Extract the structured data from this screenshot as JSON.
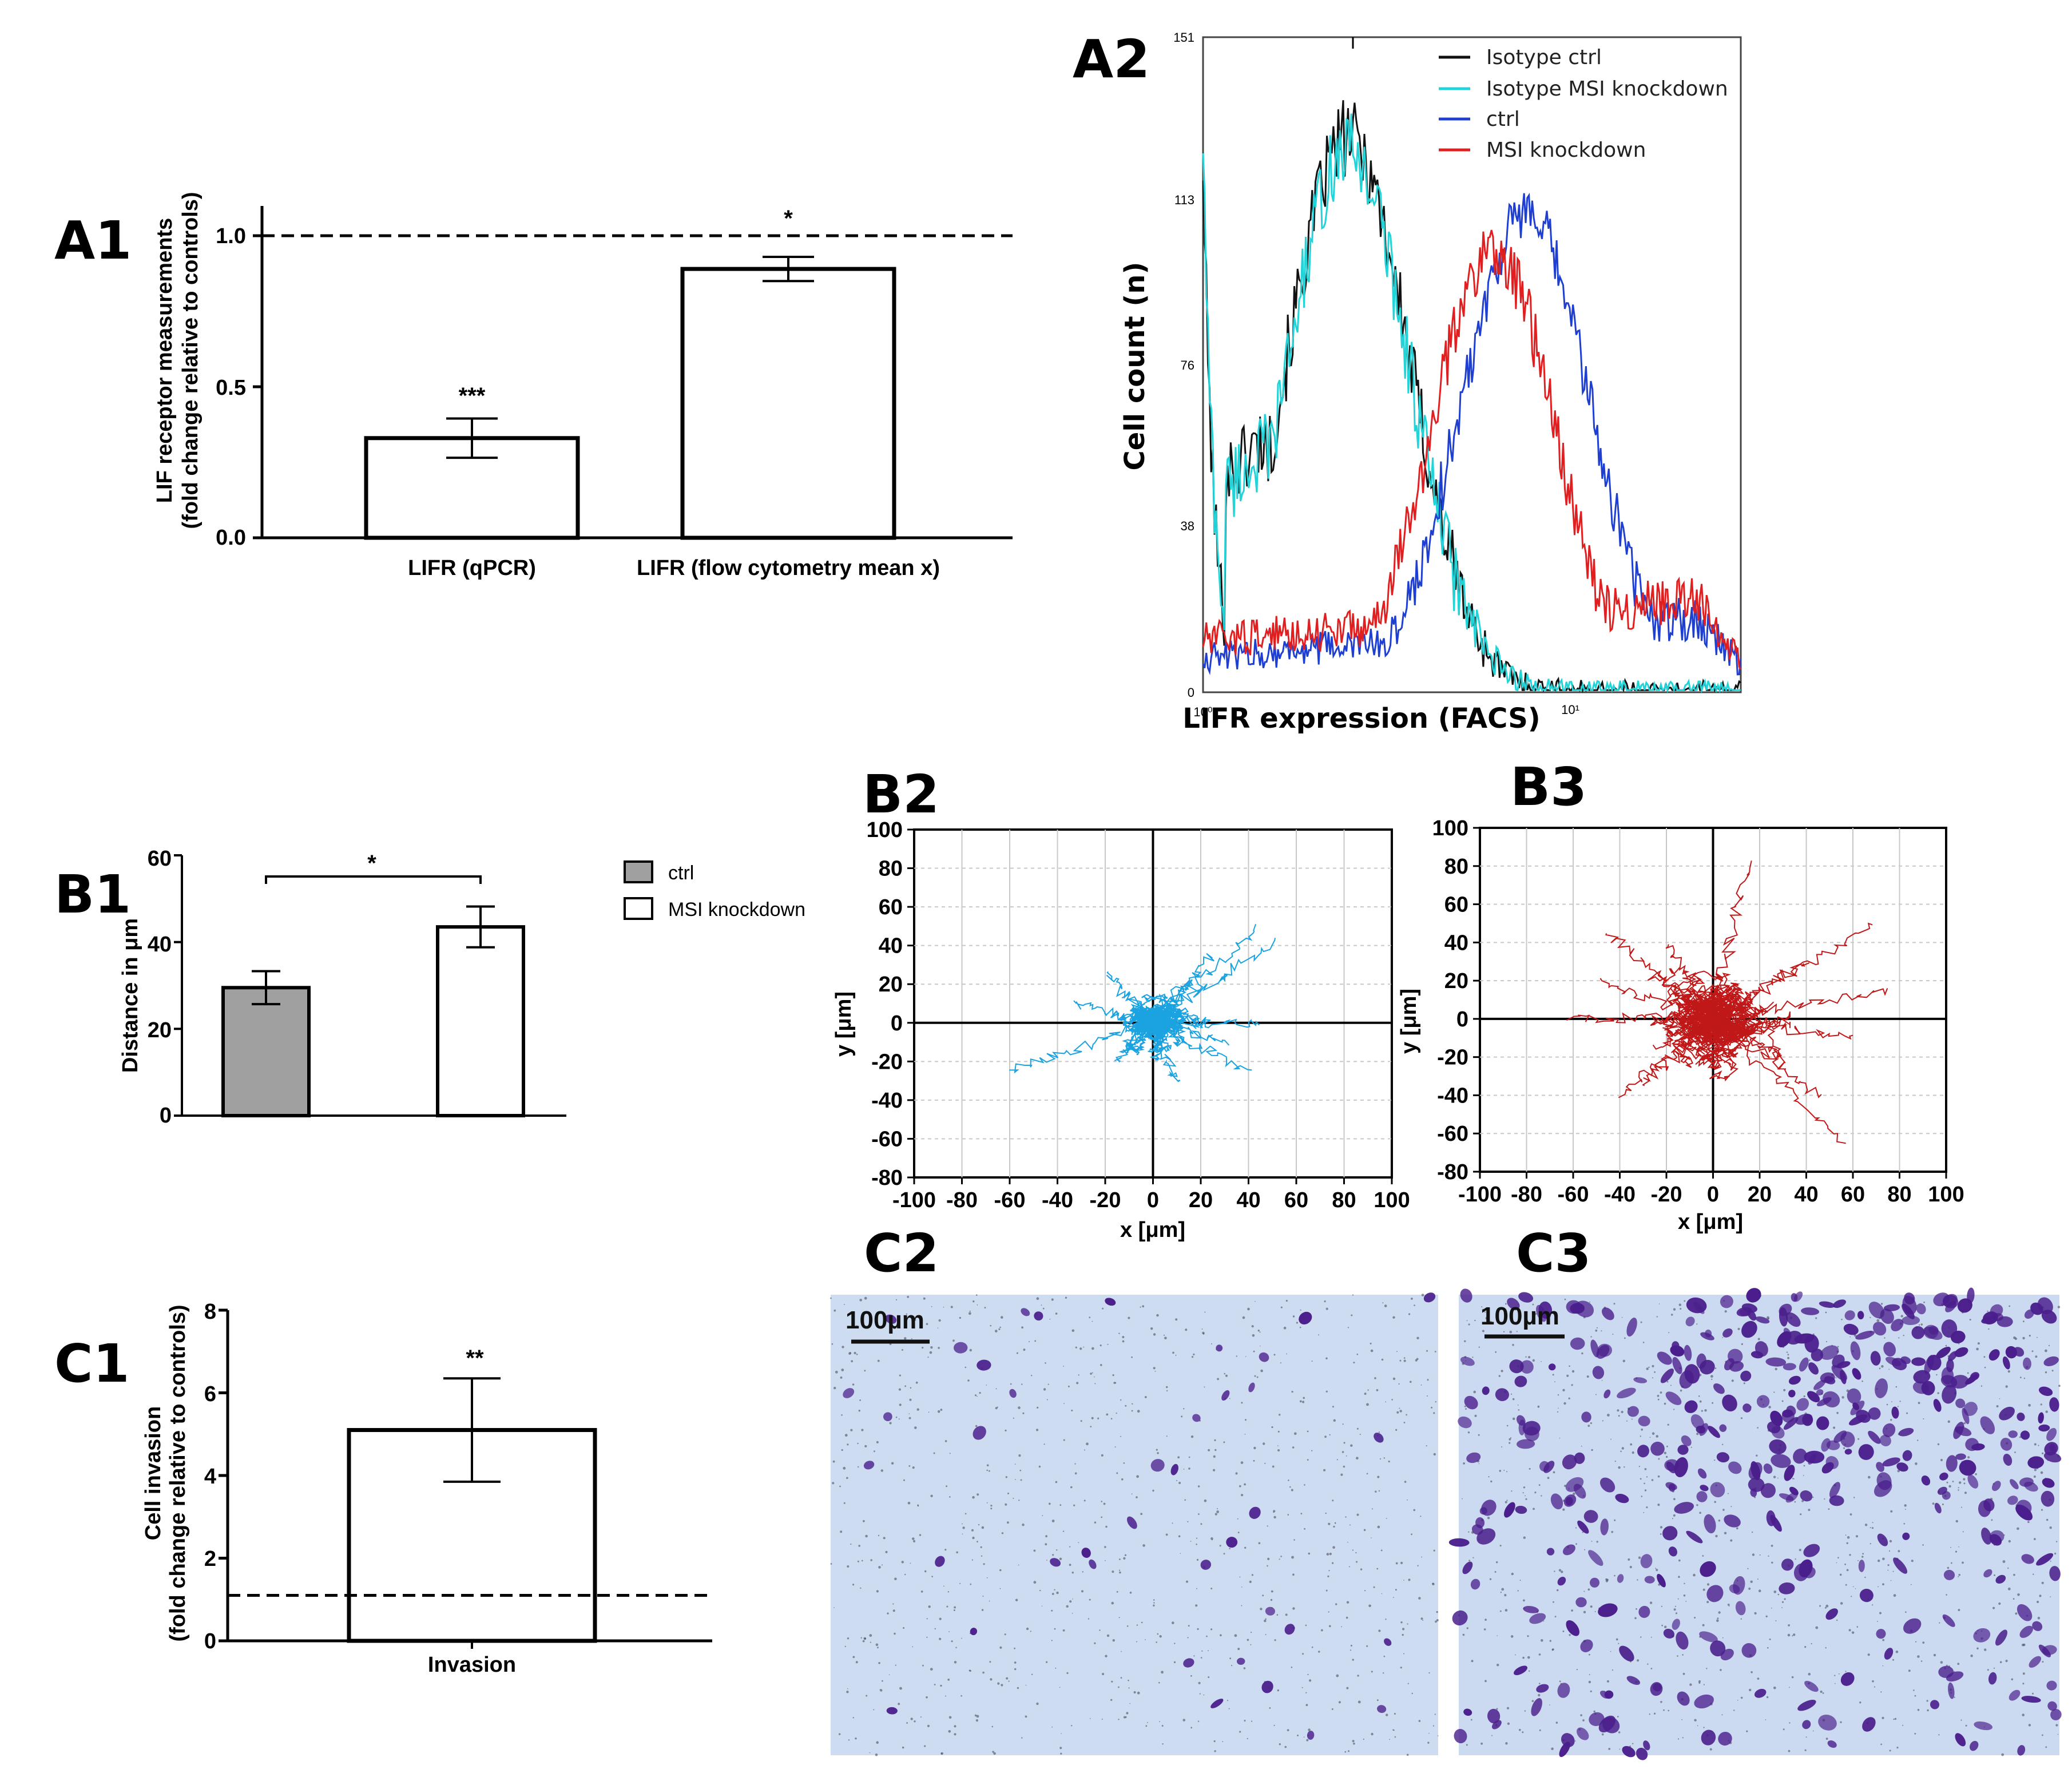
{
  "panels": {
    "A1": "A1",
    "A2": "A2",
    "B1": "B1",
    "B2": "B2",
    "B3": "B3",
    "C1": "C1",
    "C2": "C2",
    "C3": "C3"
  },
  "chart_data": [
    {
      "id": "A1",
      "type": "bar",
      "categories": [
        "LIFR (qPCR)",
        "LIFR (flow cytometry mean x)"
      ],
      "values": [
        0.33,
        0.89
      ],
      "errors": [
        0.065,
        0.04
      ],
      "significance": [
        "***",
        "*"
      ],
      "ylabel_line1": "LIF receptor measurements",
      "ylabel_line2": "(fold change relative to controls)",
      "yticks": [
        "0.0",
        "0.5",
        "1.0"
      ],
      "ylim": [
        0,
        1.1
      ],
      "reference_line": 1.0
    },
    {
      "id": "A2",
      "type": "line",
      "title": "",
      "xlabel": "LIFR expression (FACS)",
      "ylabel": "Cell count (n)",
      "yticks": [
        "0",
        "38",
        "76",
        "113",
        "151"
      ],
      "xticks": [
        "10⁰",
        "10¹"
      ],
      "ylim": [
        0,
        151
      ],
      "series": [
        {
          "name": "Isotype ctrl",
          "color": "#111111",
          "peak_x": 0.27,
          "peak_y": 128,
          "width": 0.16,
          "start": 122,
          "dip": 50
        },
        {
          "name": "Isotype MSI knockdown",
          "color": "#22d3d8",
          "peak_x": 0.27,
          "peak_y": 125,
          "width": 0.16,
          "start": 128,
          "dip": 47
        },
        {
          "name": "ctrl",
          "color": "#1f3fd0",
          "peak_x": 0.6,
          "peak_y": 110,
          "width": 0.17,
          "start": 8,
          "dip": 8
        },
        {
          "name": "MSI knockdown",
          "color": "#e02020",
          "peak_x": 0.54,
          "peak_y": 102,
          "width": 0.16,
          "start": 12,
          "dip": 12
        }
      ]
    },
    {
      "id": "B1",
      "type": "bar",
      "categories": [
        "ctrl",
        "MSI knockdown"
      ],
      "values": [
        29.5,
        43.5
      ],
      "errors": [
        3.8,
        4.7
      ],
      "colors": [
        "#a0a0a0",
        "#ffffff"
      ],
      "significance": "*",
      "ylabel": "Distance in μm",
      "yticks": [
        "0",
        "20",
        "40",
        "60"
      ],
      "ylim": [
        0,
        60
      ],
      "legend": [
        "ctrl",
        "MSI knockdown"
      ]
    },
    {
      "id": "B2",
      "type": "scatter",
      "subtype": "trajectory",
      "color": "#1aa3e0",
      "xlabel": "x [μm]",
      "ylabel": "y [μm]",
      "xlim": [
        -100,
        100
      ],
      "ylim": [
        -80,
        100
      ],
      "xticks": [
        "-100",
        "-80",
        "-60",
        "-40",
        "-20",
        "0",
        "20",
        "40",
        "60",
        "80",
        "100"
      ],
      "yticks": [
        "-80",
        "-60",
        "-40",
        "-20",
        "0",
        "20",
        "40",
        "60",
        "80",
        "100"
      ],
      "extent": 32,
      "track_endpoints": [
        [
          -60,
          -25
        ],
        [
          52,
          42
        ],
        [
          45,
          50
        ],
        [
          40,
          -25
        ],
        [
          10,
          -30
        ],
        [
          -35,
          10
        ],
        [
          25,
          35
        ],
        [
          -20,
          25
        ],
        [
          45,
          0
        ],
        [
          30,
          -10
        ],
        [
          -15,
          -20
        ],
        [
          15,
          20
        ]
      ]
    },
    {
      "id": "B3",
      "type": "scatter",
      "subtype": "trajectory",
      "color": "#c01818",
      "xlabel": "x [μm]",
      "ylabel": "y [μm]",
      "xlim": [
        -100,
        100
      ],
      "ylim": [
        -80,
        100
      ],
      "xticks": [
        "-100",
        "-80",
        "-60",
        "-40",
        "-20",
        "0",
        "20",
        "40",
        "60",
        "80",
        "100"
      ],
      "yticks": [
        "-80",
        "-60",
        "-40",
        "-20",
        "0",
        "20",
        "40",
        "60",
        "80",
        "100"
      ],
      "extent": 55,
      "track_endpoints": [
        [
          -62,
          0
        ],
        [
          -45,
          45
        ],
        [
          -40,
          -40
        ],
        [
          75,
          15
        ],
        [
          70,
          50
        ],
        [
          15,
          83
        ],
        [
          55,
          -65
        ],
        [
          45,
          -40
        ],
        [
          -30,
          -35
        ],
        [
          40,
          30
        ],
        [
          -20,
          40
        ],
        [
          30,
          -20
        ],
        [
          -50,
          20
        ],
        [
          60,
          -10
        ]
      ]
    },
    {
      "id": "C1",
      "type": "bar",
      "categories": [
        "Invasion"
      ],
      "values": [
        5.1
      ],
      "errors": [
        1.25
      ],
      "significance": [
        "**"
      ],
      "ylabel_line1": "Cell invasion",
      "ylabel_line2": "(fold change relative to controls)",
      "yticks": [
        "0",
        "2",
        "4",
        "6",
        "8"
      ],
      "ylim": [
        0,
        8
      ],
      "reference_line": 1.1
    }
  ],
  "micrographs": {
    "C2": {
      "scale_bar": "100µm",
      "cell_count": 40,
      "background": "#cddcf0"
    },
    "C3": {
      "scale_bar": "100µm",
      "cell_count": 430,
      "background": "#cbdaf0"
    }
  },
  "colors": {
    "cell_stain": "#4a1e8c",
    "debris": "#404050"
  }
}
